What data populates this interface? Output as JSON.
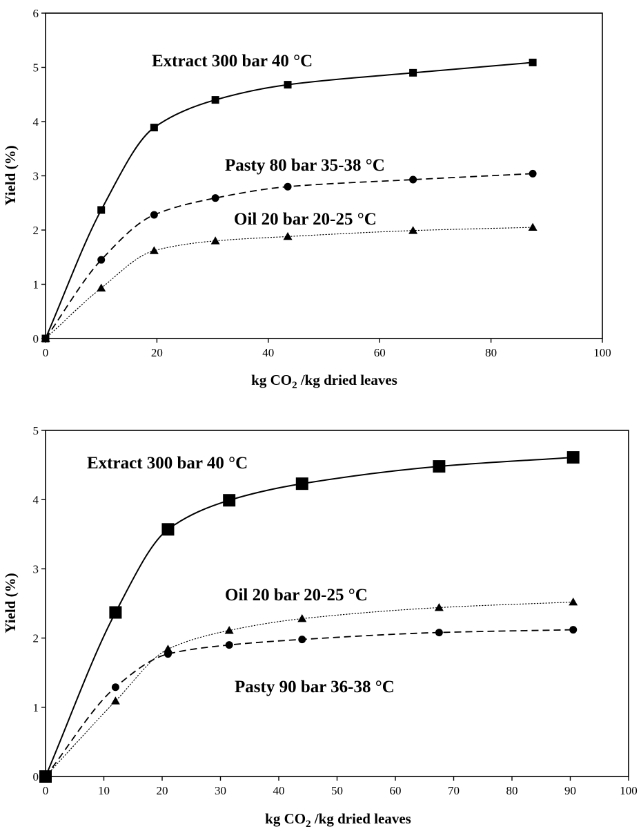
{
  "chart_data": [
    {
      "type": "line",
      "title": "",
      "xlabel": "kg CO₂ /kg dried leaves",
      "ylabel": "Yield (%)",
      "xlim": [
        0,
        100
      ],
      "ylim": [
        0,
        6
      ],
      "xticks": [
        "0",
        "20",
        "40",
        "60",
        "80",
        "100"
      ],
      "yticks": [
        "0",
        "1",
        "2",
        "3",
        "4",
        "5",
        "6"
      ],
      "grid": false,
      "series": [
        {
          "name": "Extract 300 bar 40 °C",
          "marker": "square",
          "line": "solid",
          "x": [
            0,
            10,
            19.5,
            30.5,
            43.5,
            66,
            87.5
          ],
          "y": [
            0,
            2.37,
            3.89,
            4.4,
            4.68,
            4.9,
            5.09
          ]
        },
        {
          "name": "Pasty 80 bar 35-38 °C",
          "marker": "circle",
          "line": "dashed",
          "x": [
            0,
            10,
            19.5,
            30.5,
            43.5,
            66,
            87.5
          ],
          "y": [
            0,
            1.45,
            2.28,
            2.59,
            2.8,
            2.93,
            3.04
          ]
        },
        {
          "name": "Oil 20 bar 20-25 °C",
          "marker": "triangle",
          "line": "dotted",
          "x": [
            0,
            10,
            19.5,
            30.5,
            43.5,
            66,
            87.5
          ],
          "y": [
            0,
            0.93,
            1.62,
            1.8,
            1.88,
            1.99,
            2.05
          ]
        }
      ]
    },
    {
      "type": "line",
      "title": "",
      "xlabel": "kg CO₂ /kg dried leaves",
      "ylabel": "Yield (%)",
      "xlim": [
        0,
        100
      ],
      "ylim": [
        0,
        5
      ],
      "xticks": [
        "0",
        "10",
        "20",
        "30",
        "40",
        "50",
        "60",
        "70",
        "80",
        "90",
        "100"
      ],
      "yticks": [
        "0",
        "1",
        "2",
        "3",
        "4",
        "5"
      ],
      "grid": false,
      "series": [
        {
          "name": "Extract 300 bar 40 °C",
          "marker": "square",
          "line": "solid",
          "x": [
            0,
            12,
            21,
            31.5,
            44,
            67.5,
            90.5
          ],
          "y": [
            0,
            2.37,
            3.57,
            3.99,
            4.23,
            4.48,
            4.61
          ]
        },
        {
          "name": "Oil 20 bar 20-25 °C",
          "marker": "triangle",
          "line": "dotted",
          "x": [
            0,
            12,
            21,
            31.5,
            44,
            67.5,
            90.5
          ],
          "y": [
            0,
            1.09,
            1.84,
            2.11,
            2.28,
            2.44,
            2.52
          ]
        },
        {
          "name": "Pasty 90 bar 36-38 °C",
          "marker": "circle",
          "line": "dashed",
          "x": [
            0,
            12,
            21,
            31.5,
            44,
            67.5,
            90.5
          ],
          "y": [
            0,
            1.29,
            1.77,
            1.9,
            1.98,
            2.08,
            2.12
          ]
        }
      ]
    }
  ]
}
